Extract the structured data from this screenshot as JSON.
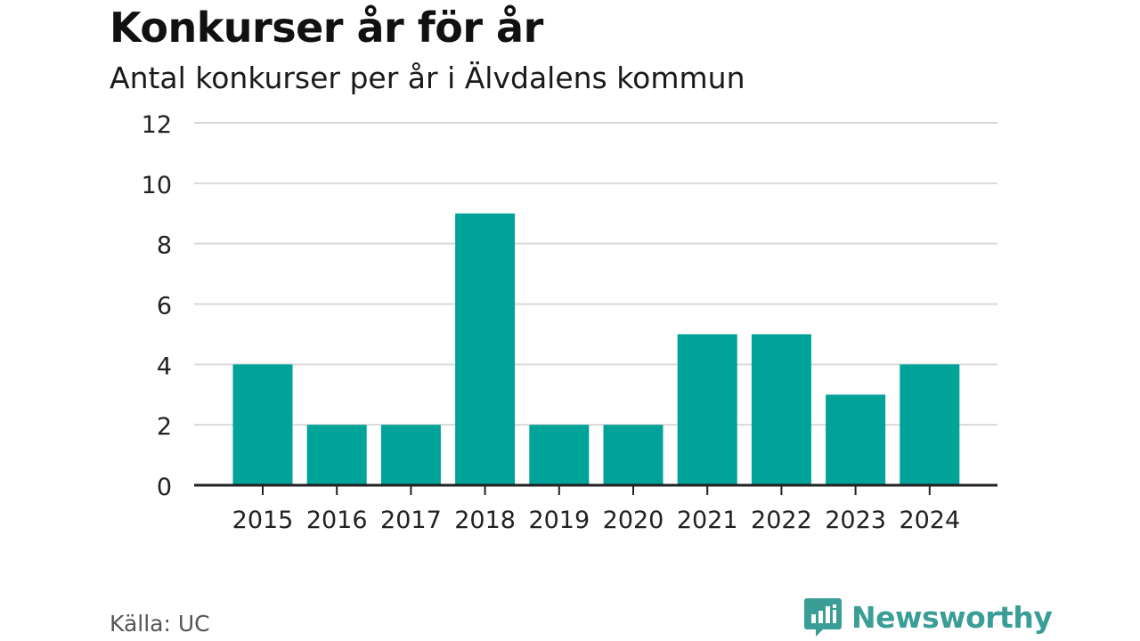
{
  "title": "Konkurser år för år",
  "subtitle": "Antal konkurser per år i Älvdalens kommun",
  "source": "Källa: UC",
  "brand": {
    "name": "Newsworthy",
    "color": "#3a9e96",
    "icon": "bar-chart-speech-bubble-icon"
  },
  "colors": {
    "bar": "#00a398",
    "grid": "#d9d9d9",
    "axis": "#222222"
  },
  "chart_data": {
    "type": "bar",
    "categories": [
      "2015",
      "2016",
      "2017",
      "2018",
      "2019",
      "2020",
      "2021",
      "2022",
      "2023",
      "2024"
    ],
    "values": [
      4,
      2,
      2,
      9,
      2,
      2,
      5,
      5,
      3,
      4
    ],
    "title": "Konkurser år för år",
    "subtitle": "Antal konkurser per år i Älvdalens kommun",
    "xlabel": "",
    "ylabel": "",
    "ylim": [
      0,
      12
    ],
    "yticks": [
      0,
      2,
      4,
      6,
      8,
      10,
      12
    ],
    "grid": true,
    "legend": "none"
  }
}
